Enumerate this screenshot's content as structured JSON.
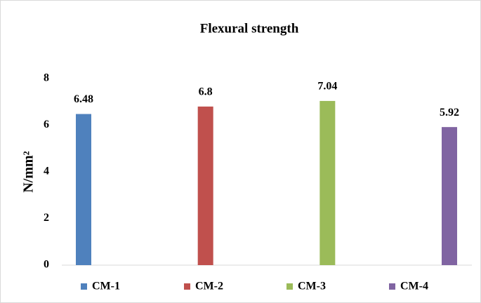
{
  "chart_data": {
    "type": "bar",
    "title": "Flexural strength",
    "y_label": "N/mm²",
    "categories": [
      null
    ],
    "series": [
      {
        "name": "CM-1",
        "color": "#4f81bd",
        "values": [
          6.48
        ]
      },
      {
        "name": "CM-2",
        "color": "#c0504d",
        "values": [
          6.8
        ]
      },
      {
        "name": "CM-3",
        "color": "#9bbb59",
        "values": [
          7.04
        ]
      },
      {
        "name": "CM-4",
        "color": "#8064a2",
        "values": [
          5.92
        ]
      }
    ],
    "ylim": [
      0,
      8
    ],
    "yticks": [
      0,
      2,
      4,
      6,
      8
    ],
    "grid": false,
    "legend": "bottom"
  }
}
